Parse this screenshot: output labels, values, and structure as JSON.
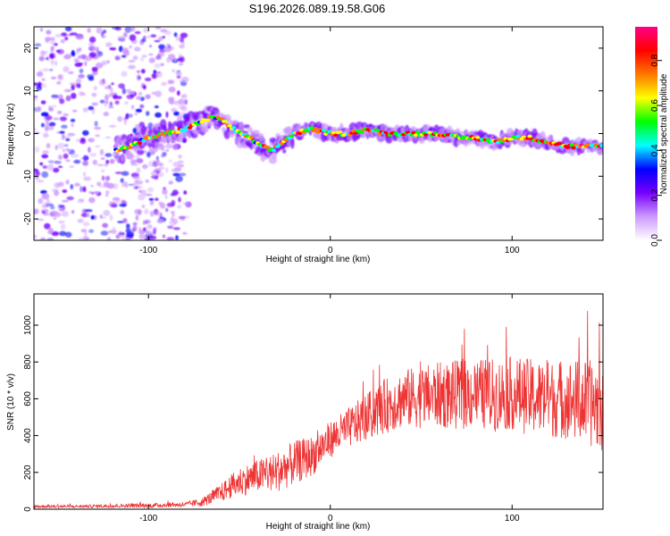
{
  "title": "S196.2026.089.19.58.G06",
  "chart_data": [
    {
      "type": "heatmap",
      "name": "spectrogram",
      "xlabel": "Height of straight line (km)",
      "ylabel": "Frequency (Hz)",
      "xlim": [
        -163,
        150
      ],
      "ylim": [
        -25,
        25
      ],
      "x_ticks": [
        -100,
        0,
        100
      ],
      "x_ticklabels": [
        "-100",
        "0",
        "100"
      ],
      "y_ticks": [
        -20,
        -10,
        0,
        10,
        20
      ],
      "y_ticklabels": [
        "-20",
        "-10",
        "0",
        "10",
        "20"
      ],
      "noise_region_x": [
        -163,
        -78
      ],
      "ridge": {
        "x": [
          -118,
          -110,
          -100,
          -90,
          -80,
          -70,
          -62,
          -56,
          -50,
          -44,
          -38,
          -32,
          -26,
          -20,
          -10,
          0,
          10,
          20,
          30,
          40,
          50,
          60,
          70,
          80,
          90,
          100,
          110,
          120,
          130,
          140,
          150
        ],
        "frequency": [
          -4,
          -3,
          -1,
          0,
          1,
          3,
          4,
          2,
          0,
          -1,
          -3,
          -4,
          -2,
          0,
          1,
          0,
          0,
          1,
          0,
          0,
          0,
          0,
          -1,
          -1,
          -2,
          -1,
          -1,
          -2,
          -3,
          -3,
          -3
        ]
      },
      "colorbar": {
        "label": "Normalized spectral amplitude",
        "range": [
          0.0,
          0.95
        ],
        "ticks": [
          0.0,
          0.2,
          0.4,
          0.6,
          0.8
        ],
        "ticklabels": [
          "0.0",
          "0.2",
          "0.4",
          "0.6",
          "0.8"
        ],
        "colors": [
          "#ffffff",
          "#cc99ff",
          "#7700ff",
          "#0000ff",
          "#00ffff",
          "#00ff00",
          "#ffff00",
          "#ff7700",
          "#ff0000",
          "#ff0088"
        ]
      }
    },
    {
      "type": "line",
      "name": "snr",
      "xlabel": "Height of straight line (km)",
      "ylabel": "SNR (10 * v/v)",
      "xlim": [
        -163,
        150
      ],
      "ylim": [
        0,
        1170
      ],
      "x_ticks": [
        -100,
        0,
        100
      ],
      "x_ticklabels": [
        "-100",
        "0",
        "100"
      ],
      "y_ticks": [
        0,
        200,
        400,
        600,
        800,
        1000
      ],
      "y_ticklabels": [
        "0",
        "200",
        "400",
        "600",
        "800",
        "1000"
      ],
      "color": "#ee3333",
      "envelope": {
        "x": [
          -163,
          -140,
          -120,
          -100,
          -80,
          -70,
          -60,
          -50,
          -40,
          -30,
          -20,
          -10,
          0,
          10,
          20,
          30,
          40,
          50,
          60,
          70,
          80,
          90,
          100,
          110,
          120,
          130,
          140,
          150
        ],
        "mean": [
          15,
          15,
          18,
          20,
          25,
          40,
          90,
          150,
          180,
          200,
          250,
          290,
          380,
          440,
          500,
          560,
          600,
          610,
          620,
          620,
          630,
          620,
          630,
          610,
          600,
          600,
          580,
          560
        ],
        "spread": [
          8,
          8,
          10,
          12,
          12,
          25,
          50,
          80,
          90,
          110,
          120,
          110,
          100,
          110,
          130,
          150,
          160,
          170,
          180,
          190,
          190,
          200,
          200,
          210,
          210,
          220,
          230,
          250
        ]
      }
    }
  ]
}
